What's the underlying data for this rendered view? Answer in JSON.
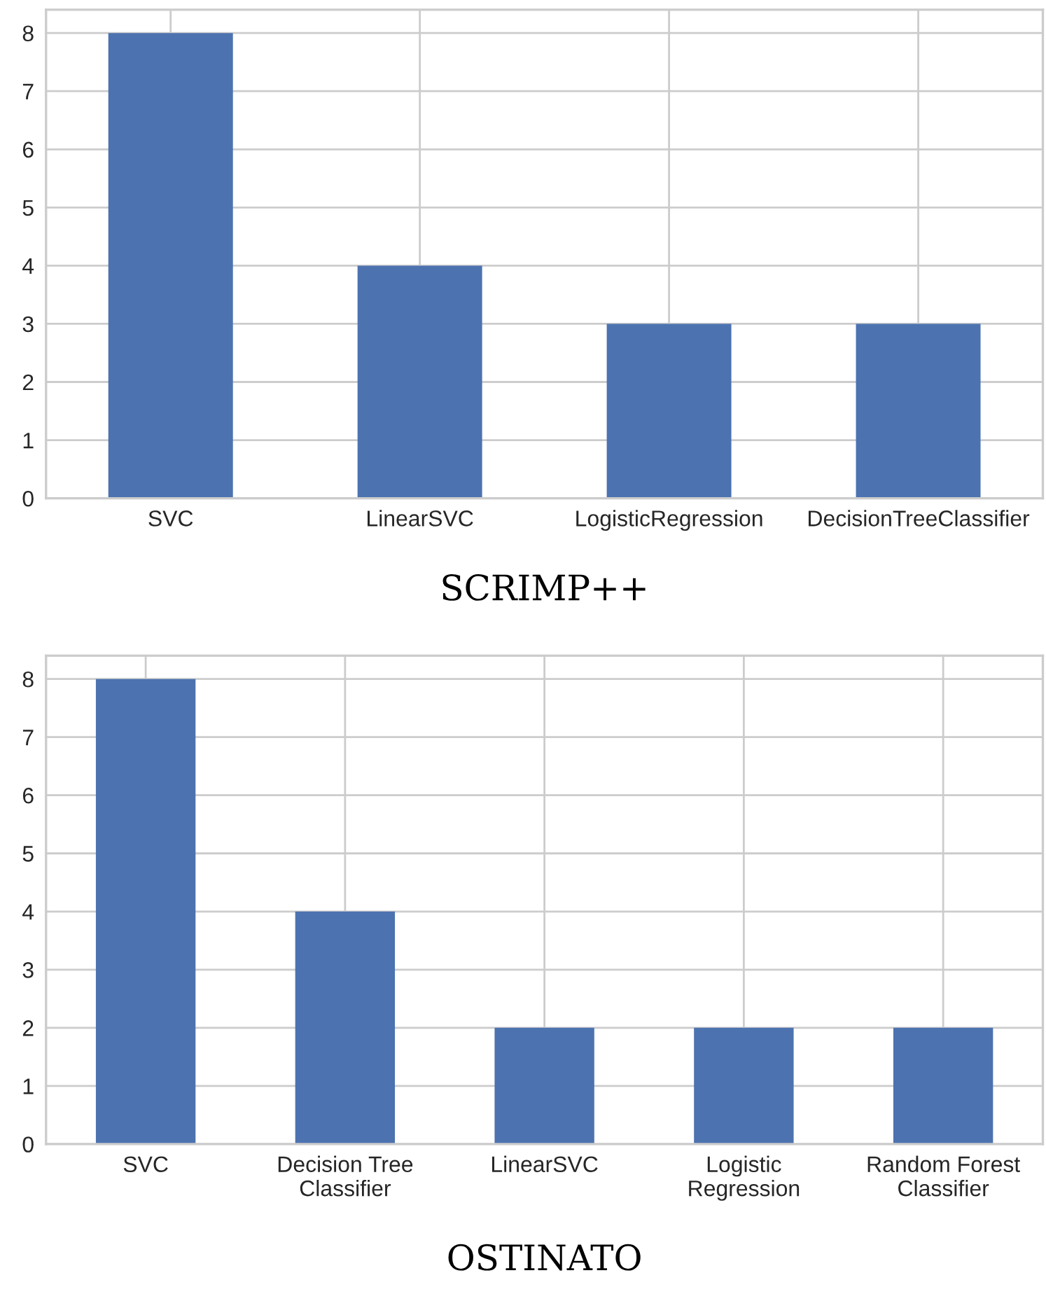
{
  "chart_data": [
    {
      "type": "bar",
      "xlabel": "SCRIMP++",
      "categories": [
        "SVC",
        "LinearSVC",
        "LogisticRegression",
        "DecisionTreeClassifier"
      ],
      "values": [
        8,
        4,
        3,
        3
      ],
      "color": "#4c72b0",
      "ylim": [
        0,
        8.4
      ],
      "yticks": [
        0,
        1,
        2,
        3,
        4,
        5,
        6,
        7,
        8
      ],
      "grid": true
    },
    {
      "type": "bar",
      "xlabel": "OSTINATO",
      "categories": [
        "SVC",
        "Decision Tree\nClassifier",
        "LinearSVC",
        "Logistic\nRegression",
        "Random Forest\nClassifier"
      ],
      "values": [
        8,
        4,
        2,
        2,
        2
      ],
      "color": "#4c72b0",
      "ylim": [
        0,
        8.4
      ],
      "yticks": [
        0,
        1,
        2,
        3,
        4,
        5,
        6,
        7,
        8
      ],
      "grid": true
    }
  ]
}
